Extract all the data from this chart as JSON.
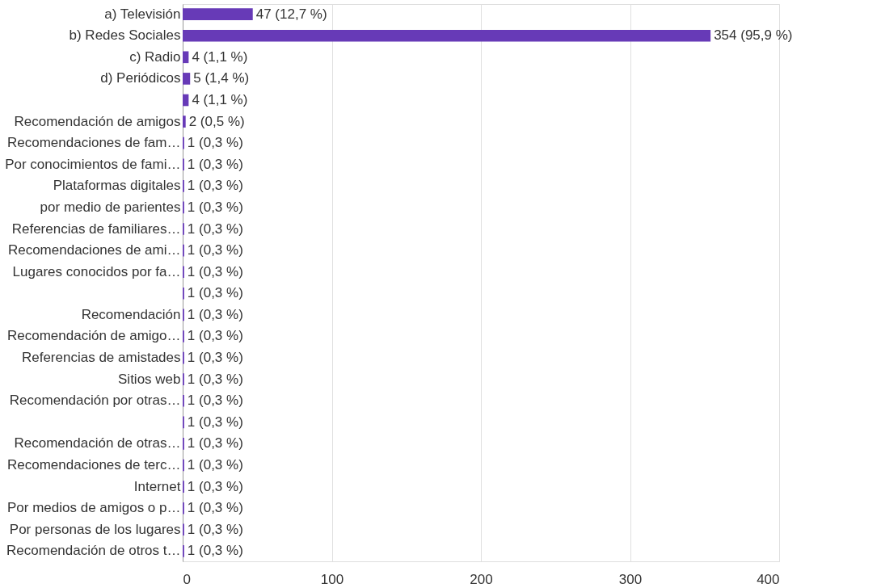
{
  "chart_data": {
    "type": "bar",
    "orientation": "horizontal",
    "categories": [
      "a) Televisión",
      "b) Redes Sociales",
      "c) Radio",
      "d) Periódicos",
      null,
      "Recomendación de amigos",
      "Recomendaciones de fam…",
      "Por conocimientos de fami…",
      "Plataformas digitales",
      "por medio de parientes",
      "Referencias de familiares…",
      "Recomendaciones de ami…",
      "Lugares conocidos por fa…",
      null,
      "Recomendación",
      "Recomendación de amigo…",
      "Referencias de amistades",
      "Sitios web",
      "Recomendación por otras…",
      null,
      "Recomendación de otras…",
      "Recomendaciones de terc…",
      "Internet",
      "Por medios de amigos o p…",
      "Por personas de los lugares",
      "Recomendación de otros t…"
    ],
    "values": [
      47,
      354,
      4,
      5,
      4,
      2,
      1,
      1,
      1,
      1,
      1,
      1,
      1,
      1,
      1,
      1,
      1,
      1,
      1,
      1,
      1,
      1,
      1,
      1,
      1,
      1
    ],
    "value_labels": [
      "47 (12,7 %)",
      "354 (95,9 %)",
      "4 (1,1 %)",
      "5 (1,4 %)",
      "4 (1,1 %)",
      "2 (0,5 %)",
      "1 (0,3 %)",
      "1 (0,3 %)",
      "1 (0,3 %)",
      "1 (0,3 %)",
      "1 (0,3 %)",
      "1 (0,3 %)",
      "1 (0,3 %)",
      "1 (0,3 %)",
      "1 (0,3 %)",
      "1 (0,3 %)",
      "1 (0,3 %)",
      "1 (0,3 %)",
      "1 (0,3 %)",
      "1 (0,3 %)",
      "1 (0,3 %)",
      "1 (0,3 %)",
      "1 (0,3 %)",
      "1 (0,3 %)",
      "1 (0,3 %)",
      "1 (0,3 %)"
    ],
    "color": "#673ab7",
    "xlim": [
      0,
      400
    ],
    "xticks": [
      0,
      100,
      200,
      300,
      400
    ],
    "grid": "x"
  }
}
